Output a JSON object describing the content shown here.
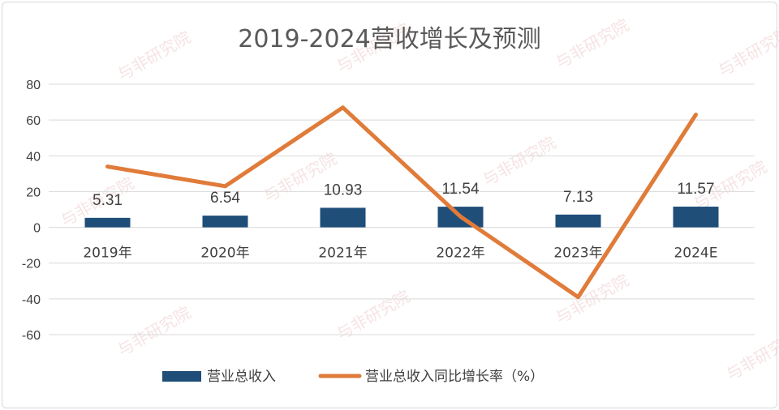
{
  "chart_data": {
    "type": "bar+line",
    "title": "2019-2024营收增长及预测",
    "categories": [
      "2019年",
      "2020年",
      "2021年",
      "2022年",
      "2023年",
      "2024E"
    ],
    "series": [
      {
        "name": "营业总收入",
        "type": "bar",
        "color": "#1f4e79",
        "values": [
          5.31,
          6.54,
          10.93,
          11.54,
          7.13,
          11.57
        ],
        "labels": [
          "5.31",
          "6.54",
          "10.93",
          "11.54",
          "7.13",
          "11.57"
        ]
      },
      {
        "name": "营业总收入同比增长率（%）",
        "type": "line",
        "color": "#e07b39",
        "values": [
          34,
          23,
          67,
          6,
          -39,
          63
        ]
      }
    ],
    "yticks": [
      "80",
      "60",
      "40",
      "20",
      "0",
      "-20",
      "-40",
      "-60"
    ],
    "ylim": [
      -60,
      80
    ],
    "grid": true,
    "legend_position": "bottom"
  },
  "watermark": {
    "text": "与非研究院"
  }
}
